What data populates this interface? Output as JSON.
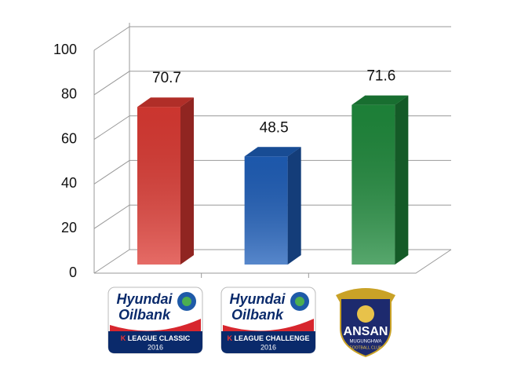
{
  "chart_data": {
    "type": "bar3d",
    "values": [
      70.7,
      48.5,
      71.6
    ],
    "colors": [
      "#dd3a33",
      "#1f5fba",
      "#1f8a3c"
    ],
    "ylim": [
      0,
      100
    ],
    "yticks": [
      0,
      20,
      40,
      60,
      80,
      100
    ],
    "grid": true,
    "logos": [
      {
        "brand": [
          "Hyundai",
          "Oilbank"
        ],
        "league": "LEAGUE CLASSIC",
        "k": "K",
        "year": "2016"
      },
      {
        "brand": [
          "Hyundai",
          "Oilbank"
        ],
        "league": "LEAGUE CHALLENGE",
        "k": "K",
        "year": "2016"
      },
      {
        "club": "ANSAN",
        "city": "MUGUNGHWA",
        "sub": "FOOTBALL CLUB"
      }
    ]
  }
}
